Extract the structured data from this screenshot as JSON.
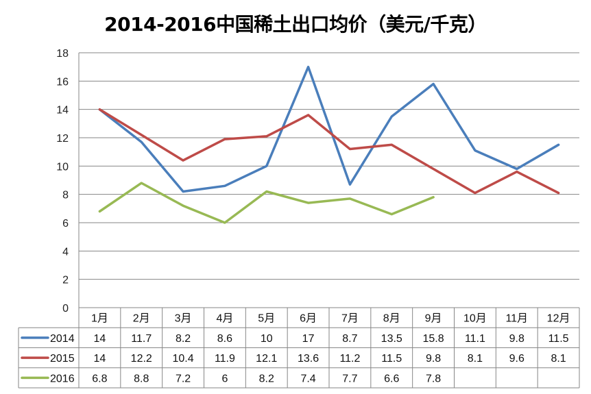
{
  "title": "2014-2016中国稀土出口均价（美元/千克）",
  "chart_data": {
    "type": "line",
    "title": "2014-2016中国稀土出口均价（美元/千克）",
    "xlabel": "",
    "ylabel": "",
    "categories": [
      "1月",
      "2月",
      "3月",
      "4月",
      "5月",
      "6月",
      "7月",
      "8月",
      "9月",
      "10月",
      "11月",
      "12月"
    ],
    "series": [
      {
        "name": "2014",
        "color": "#4A7EBB",
        "values": [
          14,
          11.7,
          8.2,
          8.6,
          10,
          17,
          8.7,
          13.5,
          15.8,
          11.1,
          9.8,
          11.5
        ]
      },
      {
        "name": "2015",
        "color": "#BE4B48",
        "values": [
          14,
          12.2,
          10.4,
          11.9,
          12.1,
          13.6,
          11.2,
          11.5,
          9.8,
          8.1,
          9.6,
          8.1
        ]
      },
      {
        "name": "2016",
        "color": "#98B954",
        "values": [
          6.8,
          8.8,
          7.2,
          6,
          8.2,
          7.4,
          7.7,
          6.6,
          7.8,
          null,
          null,
          null
        ]
      }
    ],
    "ylim": [
      0,
      18
    ],
    "yticks": [
      0,
      2,
      4,
      6,
      8,
      10,
      12,
      14,
      16,
      18
    ],
    "grid": true,
    "legend_position": "data-table-left",
    "data_table": true
  }
}
